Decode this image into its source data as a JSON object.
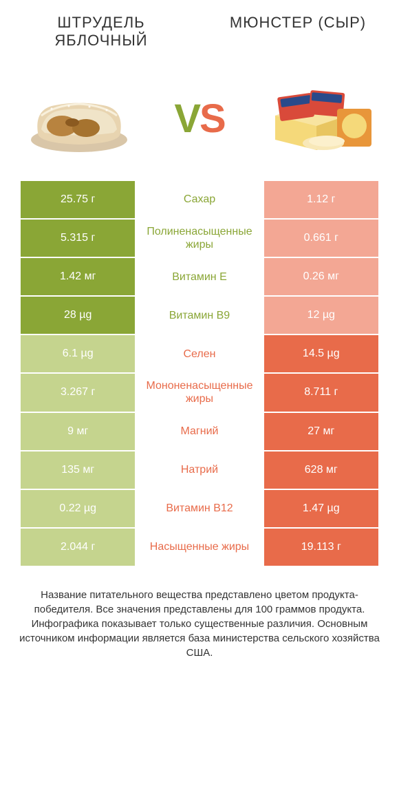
{
  "colors": {
    "green_dark": "#8aa636",
    "green_light": "#c5d48e",
    "orange_dark": "#e86b4a",
    "orange_light": "#f3a794",
    "text_green": "#8aa636",
    "text_orange": "#e86b4a"
  },
  "left_title": "ШТРУДЕЛЬ ЯБЛОЧНЫЙ",
  "right_title": "МЮНСТЕР (СЫР)",
  "rows": [
    {
      "left": "25.75 г",
      "label": "Сахар",
      "right": "1.12 г",
      "winner": "left"
    },
    {
      "left": "5.315 г",
      "label": "Полиненасыщенные жиры",
      "right": "0.661 г",
      "winner": "left"
    },
    {
      "left": "1.42 мг",
      "label": "Витамин E",
      "right": "0.26 мг",
      "winner": "left"
    },
    {
      "left": "28 µg",
      "label": "Витамин B9",
      "right": "12 µg",
      "winner": "left"
    },
    {
      "left": "6.1 µg",
      "label": "Селен",
      "right": "14.5 µg",
      "winner": "right"
    },
    {
      "left": "3.267 г",
      "label": "Мононенасыщенные жиры",
      "right": "8.711 г",
      "winner": "right"
    },
    {
      "left": "9 мг",
      "label": "Магний",
      "right": "27 мг",
      "winner": "right"
    },
    {
      "left": "135 мг",
      "label": "Натрий",
      "right": "628 мг",
      "winner": "right"
    },
    {
      "left": "0.22 µg",
      "label": "Витамин B12",
      "right": "1.47 µg",
      "winner": "right"
    },
    {
      "left": "2.044 г",
      "label": "Насыщенные жиры",
      "right": "19.113 г",
      "winner": "right"
    }
  ],
  "footer": "Название питательного вещества представлено цветом продукта-победителя.\nВсе значения представлены для 100 граммов продукта.\nИнфографика показывает только существенные различия.\nОсновным источником информации является база министерства сельского хозяйства США."
}
